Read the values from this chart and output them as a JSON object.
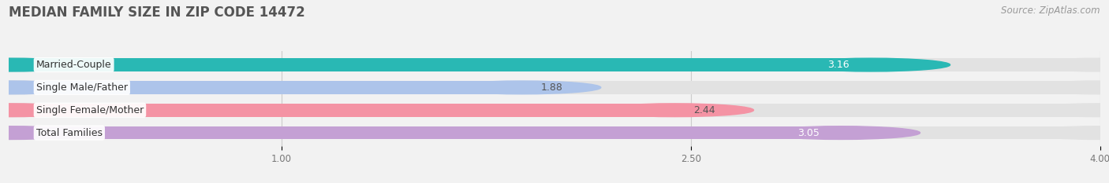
{
  "title": "MEDIAN FAMILY SIZE IN ZIP CODE 14472",
  "source": "Source: ZipAtlas.com",
  "categories": [
    "Married-Couple",
    "Single Male/Father",
    "Single Female/Mother",
    "Total Families"
  ],
  "values": [
    3.16,
    1.88,
    2.44,
    3.05
  ],
  "value_labels": [
    "3.16",
    "1.88",
    "2.44",
    "3.05"
  ],
  "bar_colors": [
    "#29b8b4",
    "#adc4ea",
    "#f493a4",
    "#c4a0d4"
  ],
  "bg_bar_color": "#e2e2e2",
  "xmin": 0.0,
  "xmax": 4.0,
  "xticks": [
    1.0,
    2.5,
    4.0
  ],
  "xtick_labels": [
    "1.00",
    "2.50",
    "4.00"
  ],
  "background_color": "#f2f2f2",
  "bar_height": 0.58,
  "title_fontsize": 12,
  "source_fontsize": 8.5,
  "label_fontsize": 9,
  "value_fontsize": 9,
  "value_inside_color": [
    "#ffffff",
    "#555555",
    "#555555",
    "#ffffff"
  ],
  "value_inside": [
    true,
    false,
    false,
    true
  ]
}
